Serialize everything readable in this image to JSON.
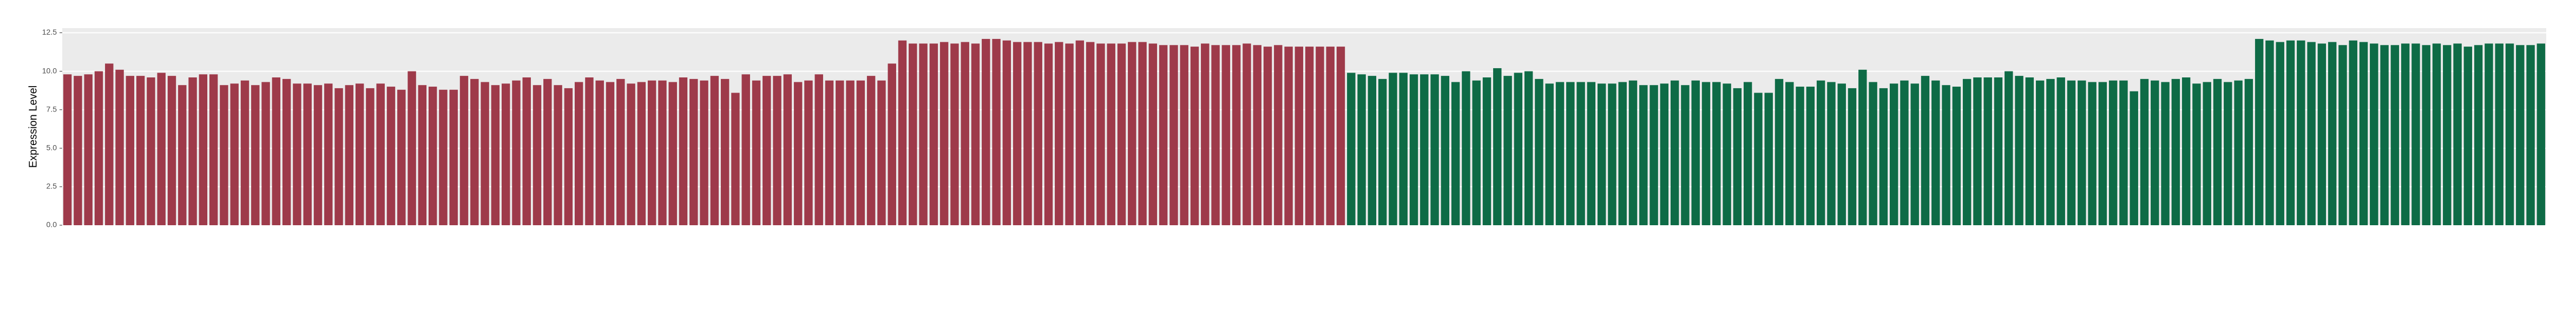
{
  "chart_data": {
    "type": "bar",
    "y_label": "Expression Level",
    "categories": [
      null,
      null,
      null,
      null,
      null,
      null,
      null,
      null,
      null,
      null,
      null,
      null,
      null,
      null,
      null,
      null,
      null,
      null,
      null,
      null,
      null,
      null,
      null,
      null,
      null,
      null,
      null,
      null,
      null,
      null,
      null,
      null,
      null,
      null,
      null,
      null,
      null,
      null,
      null,
      null,
      null,
      null,
      null,
      null,
      null,
      null,
      null,
      null,
      null,
      null,
      null,
      null,
      null,
      null,
      null,
      null,
      null,
      null,
      null,
      null,
      null,
      null,
      null,
      null,
      null,
      null,
      null,
      null,
      null,
      null,
      null,
      null,
      null,
      null,
      null,
      null,
      null,
      null,
      null,
      null,
      null,
      null,
      null,
      null,
      null,
      null,
      null,
      null,
      null,
      null,
      null,
      null,
      null,
      null,
      null,
      null,
      null,
      null,
      null,
      null,
      null,
      null,
      null,
      null,
      null,
      null,
      null,
      null,
      null,
      null,
      null,
      null,
      null,
      null,
      null,
      null,
      null,
      null,
      null,
      null,
      null,
      null,
      null,
      null,
      null,
      null,
      null,
      null,
      null,
      null,
      null,
      null,
      null,
      null,
      null,
      null,
      null,
      null,
      null,
      null,
      null,
      null,
      null,
      null,
      null,
      null,
      null,
      null,
      null,
      null,
      null,
      null,
      null,
      null,
      null,
      null,
      null,
      null,
      null,
      null,
      null,
      null,
      null,
      null,
      null,
      null,
      null,
      null,
      null,
      null,
      null,
      null,
      null,
      null,
      null,
      null,
      null,
      null,
      null,
      null,
      null,
      null,
      null,
      null,
      null,
      null,
      null,
      null,
      null,
      null,
      null,
      null,
      null,
      null,
      null,
      null,
      null,
      null,
      null,
      null,
      null,
      null,
      null,
      null,
      null,
      null,
      null,
      null,
      null,
      null,
      null,
      null,
      null,
      null,
      null,
      null,
      null,
      null,
      null,
      null,
      null,
      null,
      null,
      null,
      null,
      null,
      null,
      null,
      null,
      null,
      null,
      null,
      null,
      null,
      null,
      null,
      null,
      null
    ],
    "values": [
      9.8,
      9.7,
      9.8,
      10.0,
      10.5,
      10.1,
      9.7,
      9.7,
      9.6,
      9.9,
      9.7,
      9.1,
      9.6,
      9.8,
      9.8,
      9.1,
      9.2,
      9.4,
      9.1,
      9.3,
      9.6,
      9.5,
      9.2,
      9.2,
      9.1,
      9.2,
      8.9,
      9.1,
      9.2,
      8.9,
      9.2,
      9.0,
      8.8,
      10.0,
      9.1,
      9.0,
      8.8,
      8.8,
      9.7,
      9.5,
      9.3,
      9.1,
      9.2,
      9.4,
      9.6,
      9.1,
      9.5,
      9.1,
      8.9,
      9.3,
      9.6,
      9.4,
      9.3,
      9.5,
      9.2,
      9.3,
      9.4,
      9.4,
      9.3,
      9.6,
      9.5,
      9.4,
      9.7,
      9.5,
      8.6,
      9.8,
      9.4,
      9.7,
      9.7,
      9.8,
      9.3,
      9.4,
      9.8,
      9.4,
      9.4,
      9.4,
      9.4,
      9.7,
      9.4,
      10.5,
      12.0,
      11.8,
      11.8,
      11.8,
      11.9,
      11.8,
      11.9,
      11.8,
      12.1,
      12.1,
      12.0,
      11.9,
      11.9,
      11.9,
      11.8,
      11.9,
      11.8,
      12.0,
      11.9,
      11.8,
      11.8,
      11.8,
      11.9,
      11.9,
      11.8,
      11.7,
      11.7,
      11.7,
      11.6,
      11.8,
      11.7,
      11.7,
      11.7,
      11.8,
      11.7,
      11.6,
      11.7,
      11.6,
      11.6,
      11.6,
      11.6,
      11.6,
      11.6,
      9.9,
      9.8,
      9.7,
      9.5,
      9.9,
      9.9,
      9.8,
      9.8,
      9.8,
      9.7,
      9.3,
      10.0,
      9.4,
      9.6,
      10.2,
      9.7,
      9.9,
      10.0,
      9.5,
      9.2,
      9.3,
      9.3,
      9.3,
      9.3,
      9.2,
      9.2,
      9.3,
      9.4,
      9.1,
      9.1,
      9.2,
      9.4,
      9.1,
      9.4,
      9.3,
      9.3,
      9.2,
      8.9,
      9.3,
      8.6,
      8.6,
      9.5,
      9.3,
      9.0,
      9.0,
      9.4,
      9.3,
      9.2,
      8.9,
      10.1,
      9.3,
      8.9,
      9.2,
      9.4,
      9.2,
      9.7,
      9.4,
      9.1,
      9.0,
      9.5,
      9.6,
      9.6,
      9.6,
      10.0,
      9.7,
      9.6,
      9.4,
      9.5,
      9.6,
      9.4,
      9.4,
      9.3,
      9.3,
      9.4,
      9.4,
      8.7,
      9.5,
      9.4,
      9.3,
      9.5,
      9.6,
      9.2,
      9.3,
      9.5,
      9.3,
      9.4,
      9.5,
      12.1,
      12.0,
      11.9,
      12.0,
      12.0,
      11.9,
      11.8,
      11.9,
      11.7,
      12.0,
      11.9,
      11.8,
      11.7,
      11.7,
      11.8,
      11.8,
      11.7,
      11.8,
      11.7,
      11.8,
      11.6,
      11.7,
      11.8,
      11.8,
      11.8,
      11.7,
      11.7,
      11.8
    ],
    "colors": [
      "#9e3a4a",
      "#9e3a4a",
      "#9e3a4a",
      "#9e3a4a",
      "#9e3a4a",
      "#9e3a4a",
      "#9e3a4a",
      "#9e3a4a",
      "#9e3a4a",
      "#9e3a4a",
      "#9e3a4a",
      "#9e3a4a",
      "#9e3a4a",
      "#9e3a4a",
      "#9e3a4a",
      "#9e3a4a",
      "#9e3a4a",
      "#9e3a4a",
      "#9e3a4a",
      "#9e3a4a",
      "#9e3a4a",
      "#9e3a4a",
      "#9e3a4a",
      "#9e3a4a",
      "#9e3a4a",
      "#9e3a4a",
      "#9e3a4a",
      "#9e3a4a",
      "#9e3a4a",
      "#9e3a4a",
      "#9e3a4a",
      "#9e3a4a",
      "#9e3a4a",
      "#9e3a4a",
      "#9e3a4a",
      "#9e3a4a",
      "#9e3a4a",
      "#9e3a4a",
      "#9e3a4a",
      "#9e3a4a",
      "#9e3a4a",
      "#9e3a4a",
      "#9e3a4a",
      "#9e3a4a",
      "#9e3a4a",
      "#9e3a4a",
      "#9e3a4a",
      "#9e3a4a",
      "#9e3a4a",
      "#9e3a4a",
      "#9e3a4a",
      "#9e3a4a",
      "#9e3a4a",
      "#9e3a4a",
      "#9e3a4a",
      "#9e3a4a",
      "#9e3a4a",
      "#9e3a4a",
      "#9e3a4a",
      "#9e3a4a",
      "#9e3a4a",
      "#9e3a4a",
      "#9e3a4a",
      "#9e3a4a",
      "#9e3a4a",
      "#9e3a4a",
      "#9e3a4a",
      "#9e3a4a",
      "#9e3a4a",
      "#9e3a4a",
      "#9e3a4a",
      "#9e3a4a",
      "#9e3a4a",
      "#9e3a4a",
      "#9e3a4a",
      "#9e3a4a",
      "#9e3a4a",
      "#9e3a4a",
      "#9e3a4a",
      "#9e3a4a",
      "#9e3a4a",
      "#9e3a4a",
      "#9e3a4a",
      "#9e3a4a",
      "#9e3a4a",
      "#9e3a4a",
      "#9e3a4a",
      "#9e3a4a",
      "#9e3a4a",
      "#9e3a4a",
      "#9e3a4a",
      "#9e3a4a",
      "#9e3a4a",
      "#9e3a4a",
      "#9e3a4a",
      "#9e3a4a",
      "#9e3a4a",
      "#9e3a4a",
      "#9e3a4a",
      "#9e3a4a",
      "#9e3a4a",
      "#9e3a4a",
      "#9e3a4a",
      "#9e3a4a",
      "#9e3a4a",
      "#9e3a4a",
      "#9e3a4a",
      "#9e3a4a",
      "#9e3a4a",
      "#9e3a4a",
      "#9e3a4a",
      "#9e3a4a",
      "#9e3a4a",
      "#9e3a4a",
      "#9e3a4a",
      "#9e3a4a",
      "#9e3a4a",
      "#9e3a4a",
      "#9e3a4a",
      "#9e3a4a",
      "#9e3a4a",
      "#9e3a4a",
      "#9e3a4a",
      "#0e6b46",
      "#0e6b46",
      "#0e6b46",
      "#0e6b46",
      "#0e6b46",
      "#0e6b46",
      "#0e6b46",
      "#0e6b46",
      "#0e6b46",
      "#0e6b46",
      "#0e6b46",
      "#0e6b46",
      "#0e6b46",
      "#0e6b46",
      "#0e6b46",
      "#0e6b46",
      "#0e6b46",
      "#0e6b46",
      "#0e6b46",
      "#0e6b46",
      "#0e6b46",
      "#0e6b46",
      "#0e6b46",
      "#0e6b46",
      "#0e6b46",
      "#0e6b46",
      "#0e6b46",
      "#0e6b46",
      "#0e6b46",
      "#0e6b46",
      "#0e6b46",
      "#0e6b46",
      "#0e6b46",
      "#0e6b46",
      "#0e6b46",
      "#0e6b46",
      "#0e6b46",
      "#0e6b46",
      "#0e6b46",
      "#0e6b46",
      "#0e6b46",
      "#0e6b46",
      "#0e6b46",
      "#0e6b46",
      "#0e6b46",
      "#0e6b46",
      "#0e6b46",
      "#0e6b46",
      "#0e6b46",
      "#0e6b46",
      "#0e6b46",
      "#0e6b46",
      "#0e6b46",
      "#0e6b46",
      "#0e6b46",
      "#0e6b46",
      "#0e6b46",
      "#0e6b46",
      "#0e6b46",
      "#0e6b46",
      "#0e6b46",
      "#0e6b46",
      "#0e6b46",
      "#0e6b46",
      "#0e6b46",
      "#0e6b46",
      "#0e6b46",
      "#0e6b46",
      "#0e6b46",
      "#0e6b46",
      "#0e6b46",
      "#0e6b46",
      "#0e6b46",
      "#0e6b46",
      "#0e6b46",
      "#0e6b46",
      "#0e6b46",
      "#0e6b46",
      "#0e6b46",
      "#0e6b46",
      "#0e6b46",
      "#0e6b46",
      "#0e6b46",
      "#0e6b46",
      "#0e6b46",
      "#0e6b46",
      "#0e6b46",
      "#0e6b46",
      "#0e6b46",
      "#0e6b46",
      "#0e6b46",
      "#0e6b46",
      "#0e6b46",
      "#0e6b46",
      "#0e6b46",
      "#0e6b46",
      "#0e6b46",
      "#0e6b46",
      "#0e6b46",
      "#0e6b46",
      "#0e6b46",
      "#0e6b46",
      "#0e6b46",
      "#0e6b46",
      "#0e6b46",
      "#0e6b46",
      "#0e6b46",
      "#0e6b46",
      "#0e6b46",
      "#0e6b46",
      "#0e6b46",
      "#0e6b46",
      "#0e6b46",
      "#0e6b46",
      "#0e6b46"
    ],
    "ylim": [
      0,
      12.8
    ],
    "yticks": [
      {
        "value": 0,
        "label": "0.0"
      },
      2.5,
      {
        "value": 5,
        "label": "5.0"
      },
      7.5,
      {
        "value": 10,
        "label": "10.0"
      },
      12.5
    ],
    "grid": true
  }
}
